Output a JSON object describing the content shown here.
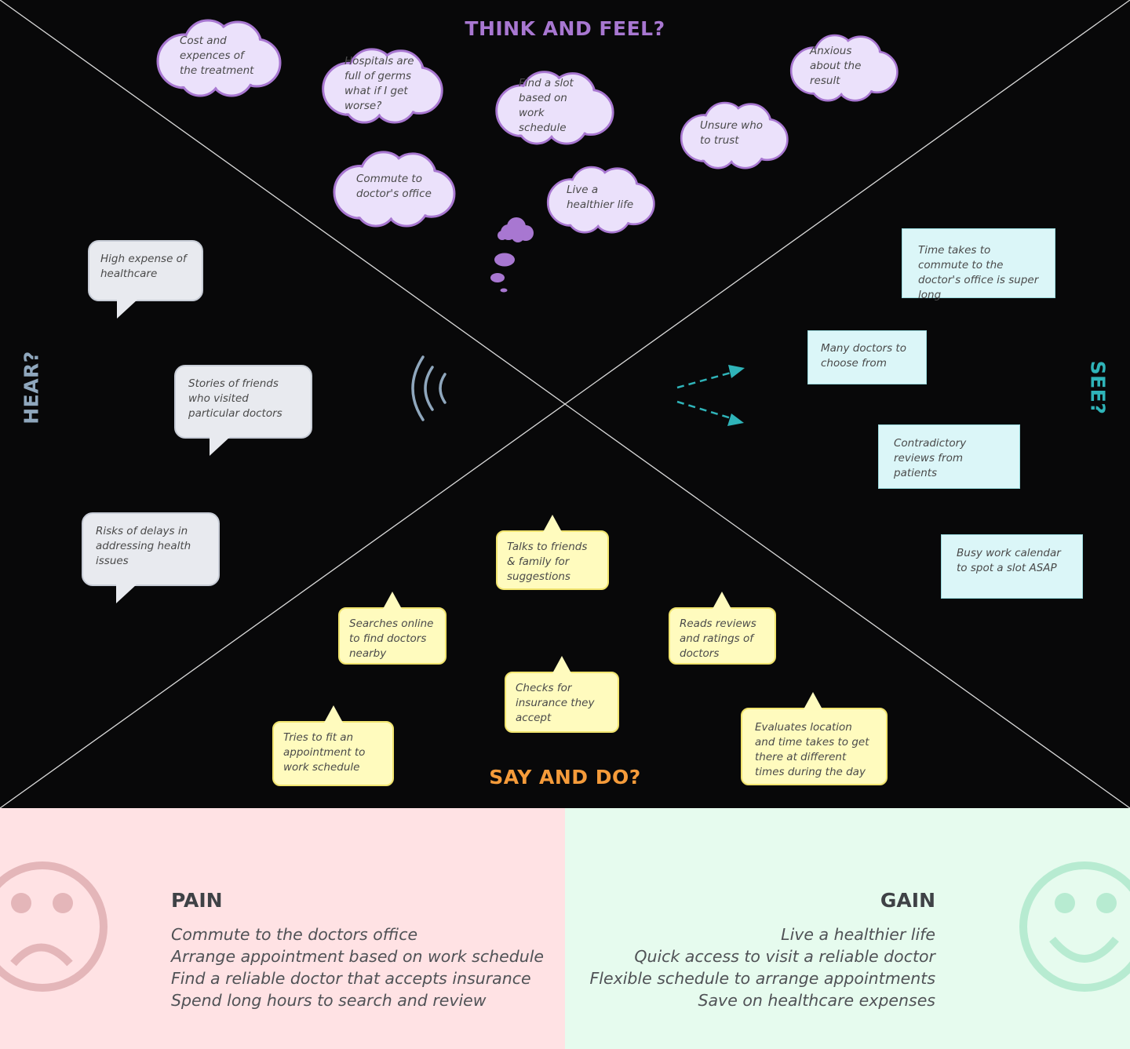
{
  "quadrants": {
    "think": "THINK AND FEEL?",
    "say": "SAY AND DO?",
    "hear": "HEAR?",
    "see": "SEE?"
  },
  "think_notes": [
    "Cost and expences of the treatment",
    "Hospitals are full of germs what if I get worse?",
    "Find a slot based on work schedule",
    "Anxious about the result",
    "Unsure who to trust",
    "Commute to doctor's office",
    "Live a healthier life"
  ],
  "hear_notes": [
    "High expense of healthcare",
    "Stories of friends who visited particular doctors",
    "Risks of delays in addressing health issues"
  ],
  "see_notes": [
    "Time takes to commute to the doctor's office is super long",
    "Many doctors to choose from",
    "Contradictory reviews from patients",
    "Busy work calendar to spot a slot ASAP"
  ],
  "say_notes": [
    "Talks to friends & family for suggestions",
    "Searches online to find doctors nearby",
    "Reads reviews and ratings of doctors",
    "Checks for insurance they accept",
    "Tries to fit an appointment to work schedule",
    "Evaluates location and time takes to get there at different times during the day"
  ],
  "pain": {
    "title": "PAIN",
    "items": [
      "Commute to the doctors office",
      "Arrange appointment based on work schedule",
      "Find a reliable doctor that accepts insurance",
      "Spend long hours to search and review"
    ]
  },
  "gain": {
    "title": "GAIN",
    "items": [
      "Live a healthier life",
      "Quick access to visit a reliable doctor",
      "Flexible schedule to arrange appointments",
      "Save on healthcare expenses"
    ]
  },
  "colors": {
    "think": "#a877d1",
    "cloud_fill": "#ebe1fb",
    "say": "#f59b3a",
    "hear": "#8fa7bd",
    "see": "#2fb4b9",
    "pain_bg": "#ffe2e4",
    "gain_bg": "#e6fbee"
  },
  "icons": {
    "think": "thought-cloud-icon",
    "hear": "sound-waves-icon",
    "see": "arrows-icon",
    "pain": "sad-face-icon",
    "gain": "smiley-face-icon"
  }
}
